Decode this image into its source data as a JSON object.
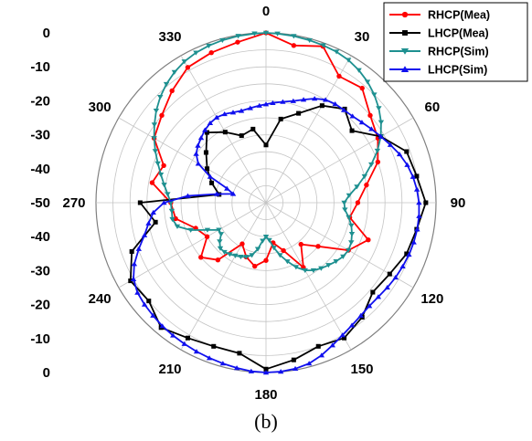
{
  "caption": "(b)",
  "chart_data": {
    "type": "polar",
    "angle_ticks": [
      {
        "deg": 0,
        "label": "0"
      },
      {
        "deg": 30,
        "label": "30"
      },
      {
        "deg": 60,
        "label": "60"
      },
      {
        "deg": 90,
        "label": "90"
      },
      {
        "deg": 120,
        "label": "120"
      },
      {
        "deg": 150,
        "label": "150"
      },
      {
        "deg": 180,
        "label": "180"
      },
      {
        "deg": 210,
        "label": "210"
      },
      {
        "deg": 240,
        "label": "240"
      },
      {
        "deg": 270,
        "label": "270"
      },
      {
        "deg": 300,
        "label": "300"
      },
      {
        "deg": 330,
        "label": "330"
      }
    ],
    "radial_range": [
      -50,
      0
    ],
    "radial_tick_labels": [
      "0",
      "-10",
      "-20",
      "-30",
      "-40",
      "-50",
      "-40",
      "-30",
      "-20",
      "-10",
      "0"
    ],
    "legend_position": "top-right",
    "series": [
      {
        "name": "RHCP(Mea)",
        "color": "#ff0000",
        "marker": "circle",
        "points": [
          [
            0,
            0
          ],
          [
            10,
            -3
          ],
          [
            20,
            -1
          ],
          [
            30,
            -7
          ],
          [
            40,
            -6
          ],
          [
            50,
            -10
          ],
          [
            60,
            -12
          ],
          [
            70,
            -15
          ],
          [
            80,
            -20
          ],
          [
            90,
            -23
          ],
          [
            100,
            -25
          ],
          [
            110,
            -18
          ],
          [
            120,
            -22
          ],
          [
            130,
            -30
          ],
          [
            140,
            -34
          ],
          [
            150,
            -28
          ],
          [
            160,
            -35
          ],
          [
            170,
            -38
          ],
          [
            180,
            -33
          ],
          [
            190,
            -31
          ],
          [
            200,
            -33
          ],
          [
            210,
            -36
          ],
          [
            220,
            -28
          ],
          [
            230,
            -25
          ],
          [
            240,
            -30
          ],
          [
            250,
            -28
          ],
          [
            260,
            -23
          ],
          [
            270,
            -22
          ],
          [
            280,
            -16
          ],
          [
            290,
            -18
          ],
          [
            300,
            -12
          ],
          [
            310,
            -10
          ],
          [
            320,
            -7
          ],
          [
            330,
            -4
          ],
          [
            340,
            -3
          ],
          [
            350,
            -2
          ],
          [
            360,
            0
          ]
        ]
      },
      {
        "name": "LHCP(Mea)",
        "color": "#000000",
        "marker": "square",
        "points": [
          [
            0,
            -33
          ],
          [
            10,
            -25
          ],
          [
            20,
            -22
          ],
          [
            30,
            -17
          ],
          [
            40,
            -14
          ],
          [
            50,
            -17
          ],
          [
            60,
            -11
          ],
          [
            70,
            -6
          ],
          [
            80,
            -5
          ],
          [
            90,
            -3
          ],
          [
            100,
            -5
          ],
          [
            110,
            -6
          ],
          [
            120,
            -8
          ],
          [
            130,
            -9
          ],
          [
            140,
            -6
          ],
          [
            150,
            -4
          ],
          [
            160,
            -5
          ],
          [
            170,
            -3
          ],
          [
            180,
            -1
          ],
          [
            190,
            -5
          ],
          [
            200,
            -5
          ],
          [
            210,
            -4
          ],
          [
            220,
            -2
          ],
          [
            230,
            -5
          ],
          [
            240,
            -4
          ],
          [
            250,
            -8
          ],
          [
            260,
            -17
          ],
          [
            270,
            -13
          ],
          [
            280,
            -36
          ],
          [
            290,
            -33
          ],
          [
            300,
            -30
          ],
          [
            310,
            -27
          ],
          [
            320,
            -23
          ],
          [
            330,
            -26
          ],
          [
            340,
            -29
          ],
          [
            350,
            -28
          ],
          [
            360,
            -33
          ]
        ]
      },
      {
        "name": "RHCP(Sim)",
        "color": "#1e9090",
        "marker": "triangle-down",
        "points": [
          [
            0,
            0
          ],
          [
            15,
            -0.5
          ],
          [
            30,
            -1.5
          ],
          [
            45,
            -5
          ],
          [
            60,
            -11
          ],
          [
            75,
            -20
          ],
          [
            90,
            -27
          ],
          [
            105,
            -24
          ],
          [
            120,
            -22
          ],
          [
            135,
            -24
          ],
          [
            150,
            -27
          ],
          [
            165,
            -34
          ],
          [
            180,
            -40
          ],
          [
            195,
            -34
          ],
          [
            210,
            -32
          ],
          [
            225,
            -31
          ],
          [
            240,
            -34
          ],
          [
            255,
            -23
          ],
          [
            270,
            -22
          ],
          [
            285,
            -18
          ],
          [
            300,
            -12
          ],
          [
            315,
            -6
          ],
          [
            330,
            -2
          ],
          [
            345,
            -0.5
          ],
          [
            360,
            0
          ]
        ]
      },
      {
        "name": "LHCP(Sim)",
        "color": "#1010ee",
        "marker": "triangle-up",
        "points": [
          [
            0,
            -21
          ],
          [
            15,
            -19
          ],
          [
            30,
            -15
          ],
          [
            45,
            -14
          ],
          [
            60,
            -11
          ],
          [
            75,
            -7
          ],
          [
            90,
            -5
          ],
          [
            105,
            -5
          ],
          [
            120,
            -6
          ],
          [
            135,
            -7
          ],
          [
            150,
            -5
          ],
          [
            165,
            -1
          ],
          [
            180,
            0
          ],
          [
            195,
            -1
          ],
          [
            210,
            -2
          ],
          [
            225,
            -3
          ],
          [
            240,
            -5
          ],
          [
            255,
            -13
          ],
          [
            270,
            -20
          ],
          [
            285,
            -40
          ],
          [
            300,
            -27
          ],
          [
            315,
            -23
          ],
          [
            330,
            -21
          ],
          [
            345,
            -22
          ],
          [
            360,
            -21
          ]
        ]
      }
    ]
  }
}
